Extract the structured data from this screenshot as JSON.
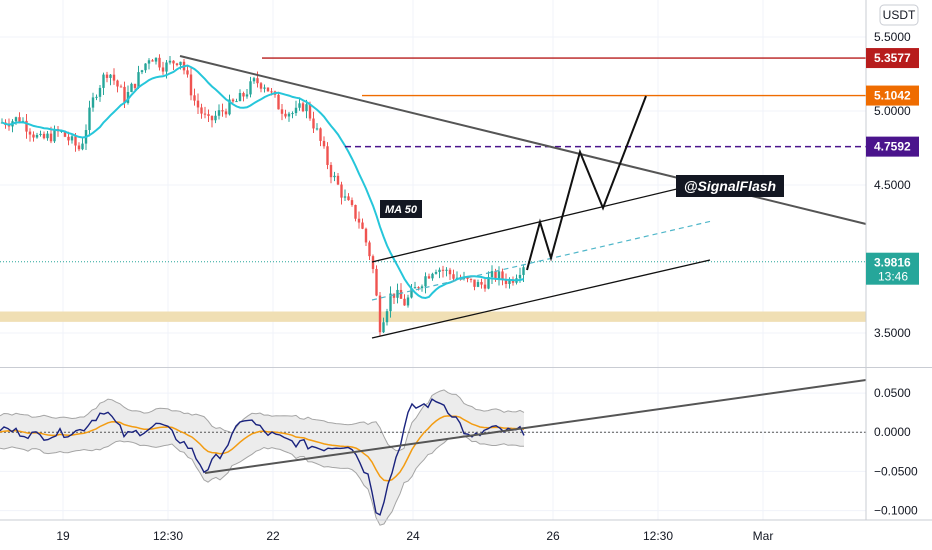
{
  "chart_data": {
    "type": "candlestick",
    "currency": "USDT",
    "x_ticks": [
      "19",
      "12:30",
      "22",
      "12:30",
      "24",
      "26",
      "12:30",
      "Mar"
    ],
    "price_ticks": [
      {
        "label": "5.5000",
        "value": 5.5
      },
      {
        "label": "5.0000",
        "value": 5.0
      },
      {
        "label": "4.5000",
        "value": 4.5
      },
      {
        "label": "3.5000",
        "value": 3.5
      }
    ],
    "price_ylim": [
      3.27,
      5.75
    ],
    "horizontal_levels": [
      {
        "label": "5.3577",
        "value": 5.3577,
        "color": "#b71c1c",
        "style": "solid"
      },
      {
        "label": "5.1042",
        "value": 5.1042,
        "color": "#ef6c00",
        "style": "solid"
      },
      {
        "label": "4.7592",
        "value": 4.7592,
        "color": "#4a148c",
        "style": "dashed"
      }
    ],
    "current_price": {
      "label": "3.9816",
      "value": 3.9816,
      "countdown": "13:46",
      "color": "#26a69a"
    },
    "support_zone": [
      3.575,
      3.645
    ],
    "annotations": {
      "ma_label": "MA 50",
      "watermark": "@SignalFlash"
    },
    "moving_average": {
      "name": "MA 50",
      "color": "#26c6da"
    },
    "indicator": {
      "y_ticks": [
        {
          "label": "0.0500",
          "value": 0.05
        },
        {
          "label": "0.0000",
          "value": 0.0
        },
        {
          "label": "−0.0500",
          "value": -0.05
        },
        {
          "label": "−0.1000",
          "value": -0.1
        }
      ],
      "ylim": [
        -0.112,
        0.082
      ]
    },
    "candle_color_up": "#26a69a",
    "candle_color_down": "#ef5350"
  }
}
